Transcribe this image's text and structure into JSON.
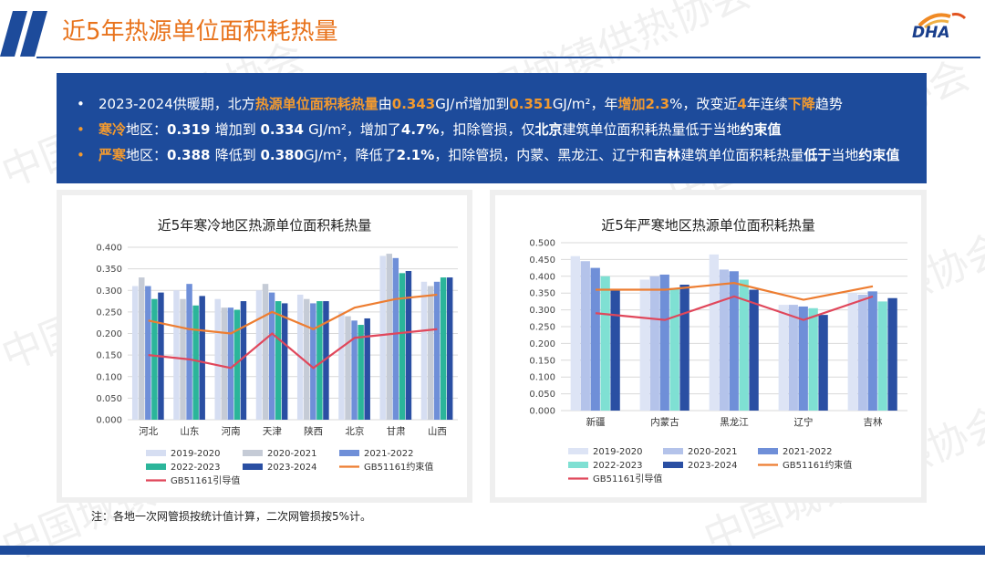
{
  "page_title": "近5年热源单位面积耗热量",
  "logo_text": "DHA",
  "watermark": "中国城镇供热协会",
  "summary": [
    {
      "parts": [
        {
          "t": "2023-2024供暖期，北方",
          "s": ""
        },
        {
          "t": "热源单位面积耗热量",
          "s": "hl"
        },
        {
          "t": "由",
          "s": ""
        },
        {
          "t": "0.343",
          "s": "hl"
        },
        {
          "t": "GJ/㎡增加到",
          "s": ""
        },
        {
          "t": "0.351",
          "s": "hl"
        },
        {
          "t": "GJ/m²，年",
          "s": ""
        },
        {
          "t": "增加2.3",
          "s": "hl"
        },
        {
          "t": "%，改变近",
          "s": ""
        },
        {
          "t": "4",
          "s": "hl"
        },
        {
          "t": "年连续",
          "s": ""
        },
        {
          "t": "下降",
          "s": "hl"
        },
        {
          "t": "趋势",
          "s": ""
        }
      ]
    },
    {
      "parts": [
        {
          "t": "寒冷",
          "s": "hl"
        },
        {
          "t": "地区：",
          "s": ""
        },
        {
          "t": "0.319 ",
          "s": "b"
        },
        {
          "t": "增加到 ",
          "s": ""
        },
        {
          "t": "0.334 ",
          "s": "b"
        },
        {
          "t": "GJ/m²，增加了",
          "s": ""
        },
        {
          "t": "4.7%",
          "s": "b"
        },
        {
          "t": "，扣除管损，仅",
          "s": ""
        },
        {
          "t": "北京",
          "s": "b"
        },
        {
          "t": "建筑单位面积耗热量低于当地",
          "s": ""
        },
        {
          "t": "约束值",
          "s": "b"
        }
      ]
    },
    {
      "parts": [
        {
          "t": "严寒",
          "s": "hl"
        },
        {
          "t": "地区：",
          "s": ""
        },
        {
          "t": "0.388 ",
          "s": "b"
        },
        {
          "t": "降低到 ",
          "s": ""
        },
        {
          "t": "0.380",
          "s": "b"
        },
        {
          "t": "GJ/m²，降低了",
          "s": ""
        },
        {
          "t": "2.1%",
          "s": "b"
        },
        {
          "t": "，扣除管损，内蒙、黑龙江、辽宁和",
          "s": ""
        },
        {
          "t": "吉林",
          "s": "b"
        },
        {
          "t": "建筑单位面积耗热量",
          "s": ""
        },
        {
          "t": "低于",
          "s": "b"
        },
        {
          "t": "当地",
          "s": ""
        },
        {
          "t": "约束值",
          "s": "b"
        }
      ]
    }
  ],
  "note": "注：各地一次网管损按统计值计算，二次网管损按5%计。",
  "chart_data": [
    {
      "type": "bar",
      "title": "近5年寒冷地区热源单位面积耗热量",
      "categories": [
        "河北",
        "山东",
        "河南",
        "天津",
        "陕西",
        "北京",
        "甘肃",
        "山西"
      ],
      "ylim": [
        0,
        0.4
      ],
      "yticks": [
        "0.000",
        "0.050",
        "0.100",
        "0.150",
        "0.200",
        "0.250",
        "0.300",
        "0.350",
        "0.400"
      ],
      "legend_position": "bottom",
      "series": [
        {
          "name": "2019-2020",
          "kind": "bar",
          "color": "#d6def2",
          "values": [
            0.31,
            0.3,
            0.28,
            0.3,
            0.29,
            0.25,
            0.38,
            0.32
          ]
        },
        {
          "name": "2020-2021",
          "kind": "bar",
          "color": "#c5cbd6",
          "values": [
            0.33,
            0.28,
            0.26,
            0.315,
            0.28,
            0.24,
            0.385,
            0.31
          ]
        },
        {
          "name": "2021-2022",
          "kind": "bar",
          "color": "#6f8fd8",
          "values": [
            0.31,
            0.315,
            0.26,
            0.295,
            0.27,
            0.23,
            0.375,
            0.32
          ]
        },
        {
          "name": "2022-2023",
          "kind": "bar",
          "color": "#2bb59a",
          "values": [
            0.28,
            0.265,
            0.255,
            0.275,
            0.275,
            0.22,
            0.34,
            0.33
          ]
        },
        {
          "name": "2023-2024",
          "kind": "bar",
          "color": "#2a4fa3",
          "values": [
            0.295,
            0.287,
            0.275,
            0.27,
            0.275,
            0.235,
            0.345,
            0.33
          ]
        },
        {
          "name": "GB51161约束值",
          "kind": "line",
          "color": "#ed7d31",
          "values": [
            0.23,
            0.21,
            0.2,
            0.25,
            0.21,
            0.26,
            0.28,
            0.29
          ]
        },
        {
          "name": "GB51161引导值",
          "kind": "line",
          "color": "#e0475b",
          "values": [
            0.15,
            0.14,
            0.12,
            0.2,
            0.12,
            0.19,
            0.2,
            0.21
          ]
        }
      ]
    },
    {
      "type": "bar",
      "title": "近5年严寒地区热源单位面积耗热量",
      "categories": [
        "新疆",
        "内蒙古",
        "黑龙江",
        "辽宁",
        "吉林"
      ],
      "ylim": [
        0,
        0.5
      ],
      "yticks": [
        "0.000",
        "0.050",
        "0.100",
        "0.150",
        "0.200",
        "0.250",
        "0.300",
        "0.350",
        "0.400",
        "0.450",
        "0.500"
      ],
      "legend_position": "bottom",
      "series": [
        {
          "name": "2019-2020",
          "kind": "bar",
          "color": "#dde4f5",
          "values": [
            0.46,
            0.39,
            0.465,
            0.315,
            0.35
          ]
        },
        {
          "name": "2020-2021",
          "kind": "bar",
          "color": "#b4c3ea",
          "values": [
            0.445,
            0.4,
            0.42,
            0.315,
            0.345
          ]
        },
        {
          "name": "2021-2022",
          "kind": "bar",
          "color": "#6f8fd8",
          "values": [
            0.425,
            0.405,
            0.415,
            0.31,
            0.355
          ]
        },
        {
          "name": "2022-2023",
          "kind": "bar",
          "color": "#7fe0d3",
          "values": [
            0.4,
            0.365,
            0.39,
            0.305,
            0.325
          ]
        },
        {
          "name": "2023-2024",
          "kind": "bar",
          "color": "#2a4fa3",
          "values": [
            0.36,
            0.375,
            0.36,
            0.285,
            0.335
          ]
        },
        {
          "name": "GB51161约束值",
          "kind": "line",
          "color": "#ed7d31",
          "values": [
            0.36,
            0.36,
            0.38,
            0.33,
            0.37
          ]
        },
        {
          "name": "GB51161引导值",
          "kind": "line",
          "color": "#e0475b",
          "values": [
            0.29,
            0.27,
            0.34,
            0.27,
            0.34
          ]
        }
      ]
    }
  ]
}
